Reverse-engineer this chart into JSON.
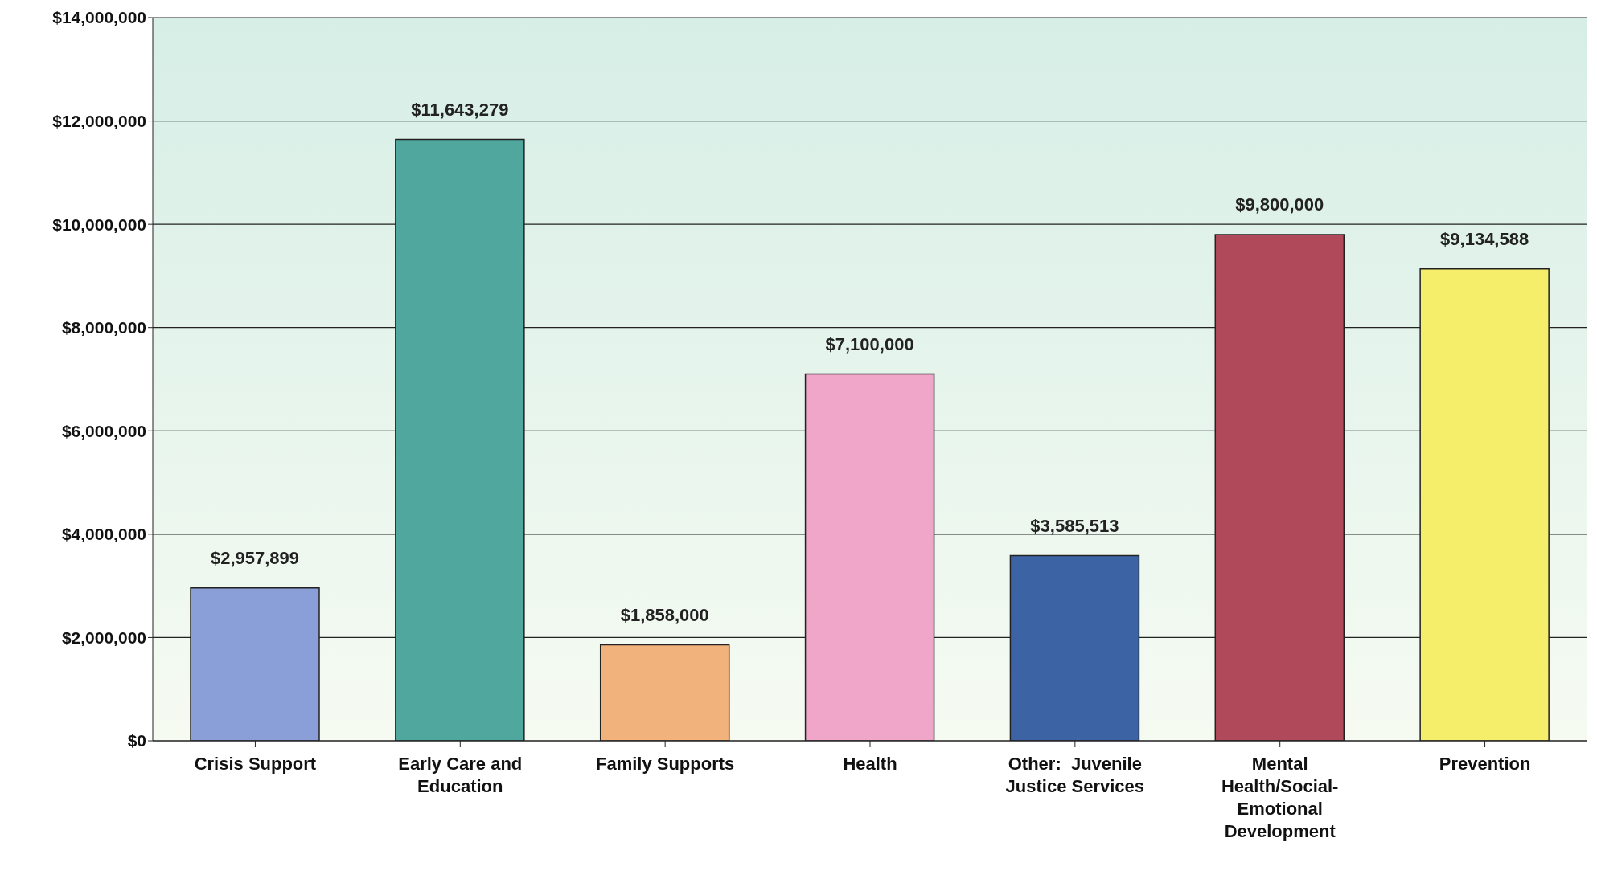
{
  "chart_data": {
    "type": "bar",
    "categories": [
      "Crisis Support",
      "Early Care and Education",
      "Family Supports",
      "Health",
      "Other:  Juvenile Justice Services",
      "Mental Health/Social-Emotional Development",
      "Prevention"
    ],
    "values": [
      2957899,
      11643279,
      1858000,
      7100000,
      3585513,
      9800000,
      9134588
    ],
    "colors": [
      "#8a9fd8",
      "#4fa79e",
      "#f2b27c",
      "#f0a6c8",
      "#3c64a4",
      "#b04a5a",
      "#f4ee6a"
    ],
    "value_labels": [
      "$2,957,899",
      "$11,643,279",
      "$1,858,000",
      "$7,100,000",
      "$3,585,513",
      "$9,800,000",
      "$9,134,588"
    ],
    "ylim": [
      0,
      14000000
    ],
    "yticks": [
      {
        "value": 0,
        "label": "$0"
      },
      {
        "value": 2000000,
        "label": "$2,000,000"
      },
      {
        "value": 4000000,
        "label": "$4,000,000"
      },
      {
        "value": 6000000,
        "label": "$6,000,000"
      },
      {
        "value": 8000000,
        "label": "$8,000,000"
      },
      {
        "value": 10000000,
        "label": "$10,000,000"
      },
      {
        "value": 12000000,
        "label": "$12,000,000"
      },
      {
        "value": 14000000,
        "label": "$14,000,000"
      }
    ],
    "grid": "y",
    "legend": false
  }
}
